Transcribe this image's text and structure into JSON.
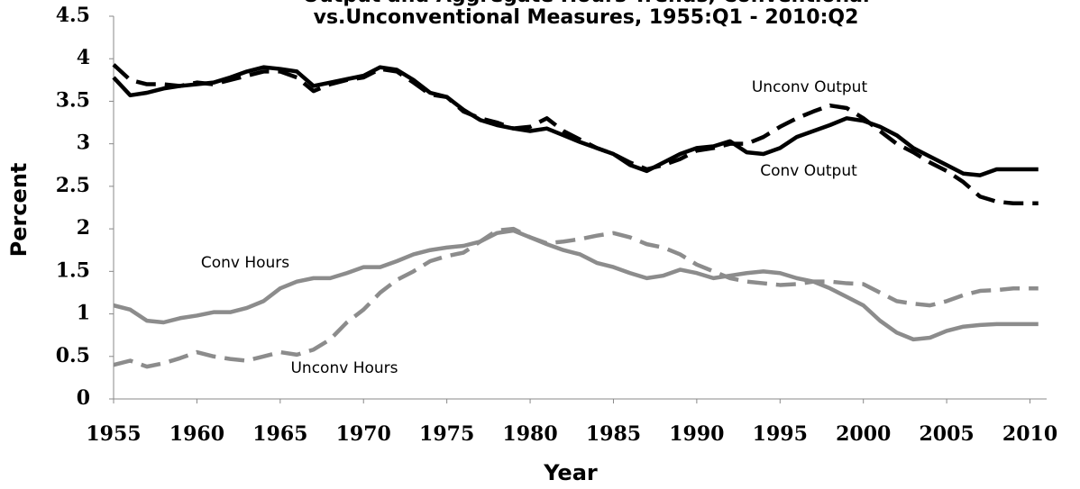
{
  "chart_data": {
    "type": "line",
    "title": [
      "Output and Aggregate Hours Trends, Conventional",
      "vs.Unconventional Measures, 1955:Q1 - 2010:Q2"
    ],
    "xlabel": "Year",
    "ylabel": "Percent",
    "x": [
      1955,
      1956,
      1957,
      1958,
      1959,
      1960,
      1961,
      1962,
      1963,
      1964,
      1965,
      1966,
      1967,
      1968,
      1969,
      1970,
      1971,
      1972,
      1973,
      1974,
      1975,
      1976,
      1977,
      1978,
      1979,
      1980,
      1981,
      1982,
      1983,
      1984,
      1985,
      1986,
      1987,
      1988,
      1989,
      1990,
      1991,
      1992,
      1993,
      1994,
      1995,
      1996,
      1997,
      1998,
      1999,
      2000,
      2001,
      2002,
      2003,
      2004,
      2005,
      2006,
      2007,
      2008,
      2009,
      2010,
      2010.5
    ],
    "series": [
      {
        "name": "Conv Output",
        "color": "#000000",
        "dash": false,
        "values": [
          3.78,
          3.57,
          3.6,
          3.65,
          3.68,
          3.7,
          3.72,
          3.78,
          3.85,
          3.9,
          3.88,
          3.85,
          3.68,
          3.72,
          3.76,
          3.8,
          3.9,
          3.87,
          3.75,
          3.6,
          3.55,
          3.4,
          3.28,
          3.22,
          3.18,
          3.15,
          3.18,
          3.1,
          3.02,
          2.95,
          2.88,
          2.75,
          2.68,
          2.78,
          2.88,
          2.95,
          2.97,
          3.03,
          2.9,
          2.88,
          2.95,
          3.08,
          3.15,
          3.22,
          3.3,
          3.27,
          3.2,
          3.1,
          2.95,
          2.85,
          2.75,
          2.65,
          2.63,
          2.7,
          2.7,
          2.7,
          2.7
        ]
      },
      {
        "name": "Unconv Output",
        "color": "#000000",
        "dash": true,
        "values": [
          3.93,
          3.75,
          3.7,
          3.7,
          3.68,
          3.72,
          3.7,
          3.75,
          3.8,
          3.85,
          3.85,
          3.78,
          3.62,
          3.7,
          3.75,
          3.78,
          3.88,
          3.85,
          3.72,
          3.58,
          3.55,
          3.38,
          3.3,
          3.25,
          3.18,
          3.2,
          3.3,
          3.15,
          3.05,
          2.95,
          2.88,
          2.78,
          2.7,
          2.75,
          2.82,
          2.92,
          2.95,
          3.0,
          3.0,
          3.08,
          3.2,
          3.3,
          3.38,
          3.45,
          3.42,
          3.3,
          3.15,
          3.0,
          2.9,
          2.78,
          2.68,
          2.55,
          2.38,
          2.32,
          2.3,
          2.3,
          2.3
        ]
      },
      {
        "name": "Conv Hours",
        "color": "#8c8c8c",
        "dash": false,
        "values": [
          1.1,
          1.05,
          0.92,
          0.9,
          0.95,
          0.98,
          1.02,
          1.02,
          1.07,
          1.15,
          1.3,
          1.38,
          1.42,
          1.42,
          1.48,
          1.55,
          1.55,
          1.62,
          1.7,
          1.75,
          1.78,
          1.8,
          1.85,
          1.95,
          1.98,
          1.9,
          1.82,
          1.75,
          1.7,
          1.6,
          1.55,
          1.48,
          1.42,
          1.45,
          1.52,
          1.48,
          1.42,
          1.45,
          1.48,
          1.5,
          1.48,
          1.42,
          1.38,
          1.3,
          1.2,
          1.1,
          0.92,
          0.78,
          0.7,
          0.72,
          0.8,
          0.85,
          0.87,
          0.88,
          0.88,
          0.88,
          0.88
        ]
      },
      {
        "name": "Unconv Hours",
        "color": "#8c8c8c",
        "dash": true,
        "values": [
          0.4,
          0.45,
          0.38,
          0.42,
          0.48,
          0.55,
          0.5,
          0.47,
          0.45,
          0.5,
          0.55,
          0.52,
          0.58,
          0.7,
          0.9,
          1.05,
          1.25,
          1.4,
          1.5,
          1.62,
          1.68,
          1.72,
          1.85,
          1.98,
          2.0,
          1.9,
          1.83,
          1.85,
          1.88,
          1.92,
          1.95,
          1.9,
          1.82,
          1.78,
          1.7,
          1.58,
          1.5,
          1.42,
          1.38,
          1.36,
          1.34,
          1.35,
          1.38,
          1.38,
          1.36,
          1.35,
          1.25,
          1.15,
          1.12,
          1.1,
          1.15,
          1.22,
          1.27,
          1.28,
          1.3,
          1.3,
          1.3
        ]
      }
    ],
    "xlim": [
      1955,
      2011
    ],
    "xticks": [
      1955,
      1960,
      1965,
      1970,
      1975,
      1980,
      1985,
      1990,
      1995,
      2000,
      2005,
      2010
    ],
    "ylim": [
      0,
      4.5
    ],
    "yticks": [
      0,
      0.5,
      1,
      1.5,
      2,
      2.5,
      3,
      3.5,
      4,
      4.5
    ],
    "grid": false
  }
}
